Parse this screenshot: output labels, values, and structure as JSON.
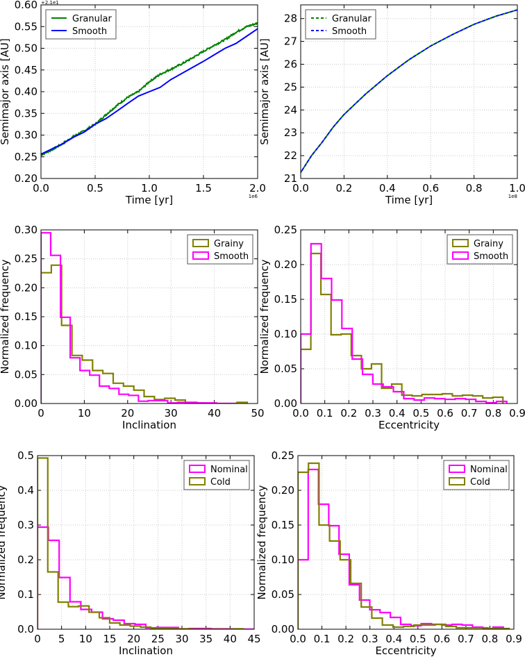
{
  "chart_data": [
    {
      "type": "line",
      "xlabel": "Time [yr]",
      "ylabel": "Semimajor axis [AU]",
      "x_offset_text": "1e6",
      "y_offset_text": "+2.1e1",
      "xlim": [
        0,
        2.0
      ],
      "ylim": [
        0.2,
        0.6
      ],
      "xticks": [
        0,
        0.5,
        1.0,
        1.5,
        2.0
      ],
      "xtick_labels": [
        "0.0",
        "0.5",
        "1.0",
        "1.5",
        "2.0"
      ],
      "yticks": [
        0.2,
        0.25,
        0.3,
        0.35,
        0.4,
        0.45,
        0.5,
        0.55,
        0.6
      ],
      "ytick_labels": [
        "0.20",
        "0.25",
        "0.30",
        "0.35",
        "0.40",
        "0.45",
        "0.50",
        "0.55",
        "0.60"
      ],
      "grid": true,
      "legend": "top-left",
      "x": [
        0,
        0.1,
        0.2,
        0.3,
        0.4,
        0.5,
        0.6,
        0.7,
        0.8,
        0.9,
        1.0,
        1.1,
        1.2,
        1.3,
        1.4,
        1.5,
        1.6,
        1.7,
        1.8,
        1.9,
        2.0
      ],
      "series": [
        {
          "name": "Granular",
          "color": "#008000",
          "style": "solid",
          "noisy": true,
          "values": [
            0.254,
            0.266,
            0.28,
            0.297,
            0.31,
            0.325,
            0.347,
            0.368,
            0.387,
            0.4,
            0.423,
            0.44,
            0.452,
            0.464,
            0.478,
            0.493,
            0.507,
            0.52,
            0.537,
            0.55,
            0.558
          ]
        },
        {
          "name": "Smooth",
          "color": "#0000ff",
          "style": "solid",
          "values": [
            0.256,
            0.268,
            0.28,
            0.295,
            0.307,
            0.325,
            0.338,
            0.355,
            0.373,
            0.39,
            0.4,
            0.41,
            0.428,
            0.442,
            0.456,
            0.47,
            0.485,
            0.5,
            0.511,
            0.528,
            0.545
          ]
        }
      ]
    },
    {
      "type": "line",
      "xlabel": "Time [yr]",
      "ylabel": "Semimajor axis [AU]",
      "x_offset_text": "1e8",
      "xlim": [
        0,
        1.0
      ],
      "ylim": [
        21,
        28.6
      ],
      "xticks": [
        0,
        0.2,
        0.4,
        0.6,
        0.8,
        1.0
      ],
      "xtick_labels": [
        "0.0",
        "0.2",
        "0.4",
        "0.6",
        "0.8",
        "1.0"
      ],
      "yticks": [
        21,
        22,
        23,
        24,
        25,
        26,
        27,
        28
      ],
      "ytick_labels": [
        "21",
        "22",
        "23",
        "24",
        "25",
        "26",
        "27",
        "28"
      ],
      "grid": true,
      "legend": "top-left",
      "x": [
        0,
        0.05,
        0.1,
        0.15,
        0.2,
        0.3,
        0.4,
        0.5,
        0.6,
        0.7,
        0.8,
        0.9,
        1.0
      ],
      "series": [
        {
          "name": "Granular",
          "color": "#008000",
          "style": "dashed",
          "values": [
            21.26,
            22.0,
            22.6,
            23.25,
            23.8,
            24.7,
            25.5,
            26.2,
            26.8,
            27.3,
            27.75,
            28.1,
            28.38
          ]
        },
        {
          "name": "Smooth",
          "color": "#0000ff",
          "style": "dashed",
          "values": [
            21.26,
            22.0,
            22.6,
            23.25,
            23.8,
            24.7,
            25.5,
            26.2,
            26.8,
            27.3,
            27.75,
            28.1,
            28.38
          ]
        }
      ]
    },
    {
      "type": "histogram",
      "xlabel": "Inclination",
      "ylabel": "Normalized frequency",
      "xlim": [
        0,
        50
      ],
      "ylim": [
        0,
        0.3
      ],
      "xticks": [
        0,
        10,
        20,
        30,
        40,
        50
      ],
      "xtick_labels": [
        "0",
        "10",
        "20",
        "30",
        "40",
        "50"
      ],
      "yticks": [
        0,
        0.05,
        0.1,
        0.15,
        0.2,
        0.25,
        0.3
      ],
      "ytick_labels": [
        "0.00",
        "0.05",
        "0.10",
        "0.15",
        "0.20",
        "0.25",
        "0.30"
      ],
      "grid": true,
      "legend": "top-right",
      "series": [
        {
          "name": "Grainy",
          "color": "#808000",
          "bin_start": 0,
          "bin_width": 2.38,
          "values": [
            0.226,
            0.239,
            0.135,
            0.083,
            0.075,
            0.057,
            0.052,
            0.035,
            0.03,
            0.023,
            0.012,
            0.007,
            0.009,
            0.006,
            0.001,
            0.001,
            0.0,
            0.0,
            0.0,
            0.002
          ]
        },
        {
          "name": "Smooth",
          "color": "#ff00ff",
          "bin_start": 0,
          "bin_width": 2.25,
          "values": [
            0.295,
            0.256,
            0.149,
            0.079,
            0.057,
            0.049,
            0.03,
            0.026,
            0.016,
            0.014,
            0.004,
            0.005,
            0.005,
            0.001,
            0.002,
            0.002,
            0.001,
            0.001,
            0.0,
            0.0
          ]
        }
      ]
    },
    {
      "type": "histogram",
      "xlabel": "Eccentricity",
      "ylabel": "Normalized frequency",
      "xlim": [
        0,
        0.9
      ],
      "ylim": [
        0,
        0.25
      ],
      "xticks": [
        0,
        0.1,
        0.2,
        0.3,
        0.4,
        0.5,
        0.6,
        0.7,
        0.8,
        0.9
      ],
      "xtick_labels": [
        "0.0",
        "0.1",
        "0.2",
        "0.3",
        "0.4",
        "0.5",
        "0.6",
        "0.7",
        "0.8",
        "0.9"
      ],
      "yticks": [
        0,
        0.05,
        0.1,
        0.15,
        0.2,
        0.25
      ],
      "ytick_labels": [
        "0.00",
        "0.05",
        "0.10",
        "0.15",
        "0.20",
        "0.25"
      ],
      "grid": true,
      "legend": "top-right",
      "series": [
        {
          "name": "Grainy",
          "color": "#808000",
          "bin_start": 0,
          "bin_width": 0.042,
          "values": [
            0.078,
            0.216,
            0.157,
            0.099,
            0.1,
            0.069,
            0.05,
            0.057,
            0.022,
            0.028,
            0.012,
            0.011,
            0.013,
            0.013,
            0.014,
            0.011,
            0.012,
            0.011,
            0.008,
            0.009
          ]
        },
        {
          "name": "Smooth",
          "color": "#ff00ff",
          "bin_start": 0,
          "bin_width": 0.0428,
          "values": [
            0.1,
            0.23,
            0.18,
            0.149,
            0.108,
            0.064,
            0.042,
            0.028,
            0.024,
            0.017,
            0.007,
            0.005,
            0.008,
            0.007,
            0.006,
            0.007,
            0.006,
            0.003,
            0.001,
            0.003
          ]
        }
      ]
    },
    {
      "type": "histogram",
      "xlabel": "Inclination",
      "ylabel": "Normalized frequency",
      "xlim": [
        0,
        45
      ],
      "ylim": [
        0,
        0.5
      ],
      "xticks": [
        0,
        5,
        10,
        15,
        20,
        25,
        30,
        35,
        40,
        45
      ],
      "xtick_labels": [
        "0",
        "5",
        "10",
        "15",
        "20",
        "25",
        "30",
        "35",
        "40",
        "45"
      ],
      "yticks": [
        0,
        0.1,
        0.2,
        0.3,
        0.4,
        0.5
      ],
      "ytick_labels": [
        "0.0",
        "0.1",
        "0.2",
        "0.3",
        "0.4",
        "0.5"
      ],
      "grid": true,
      "legend": "top-right",
      "series": [
        {
          "name": "Nominal",
          "color": "#ff00ff",
          "bin_start": 0,
          "bin_width": 2.25,
          "values": [
            0.294,
            0.256,
            0.149,
            0.079,
            0.057,
            0.049,
            0.03,
            0.026,
            0.016,
            0.014,
            0.004,
            0.005,
            0.005,
            0.001,
            0.002,
            0.002,
            0.001,
            0.001,
            0.0,
            0.0
          ]
        },
        {
          "name": "Cold",
          "color": "#808000",
          "bin_start": 0,
          "bin_width": 2.14,
          "values": [
            0.493,
            0.165,
            0.078,
            0.065,
            0.067,
            0.049,
            0.033,
            0.018,
            0.012,
            0.009,
            0.006,
            0.002,
            0.002,
            0.001,
            0.001,
            0.0,
            0.0,
            0.0,
            0.0,
            0.001
          ]
        }
      ]
    },
    {
      "type": "histogram",
      "xlabel": "Eccentricity",
      "ylabel": "Normalized frequency",
      "xlim": [
        0,
        0.9
      ],
      "ylim": [
        0,
        0.25
      ],
      "xticks": [
        0,
        0.1,
        0.2,
        0.3,
        0.4,
        0.5,
        0.6,
        0.7,
        0.8,
        0.9
      ],
      "xtick_labels": [
        "0.0",
        "0.1",
        "0.2",
        "0.3",
        "0.4",
        "0.5",
        "0.6",
        "0.7",
        "0.8",
        "0.9"
      ],
      "yticks": [
        0,
        0.05,
        0.1,
        0.15,
        0.2,
        0.25
      ],
      "ytick_labels": [
        "0.00",
        "0.05",
        "0.10",
        "0.15",
        "0.20",
        "0.25"
      ],
      "grid": true,
      "legend": "top-right",
      "series": [
        {
          "name": "Nominal",
          "color": "#ff00ff",
          "bin_start": 0,
          "bin_width": 0.0428,
          "values": [
            0.1,
            0.23,
            0.18,
            0.149,
            0.108,
            0.064,
            0.042,
            0.028,
            0.024,
            0.017,
            0.007,
            0.005,
            0.008,
            0.007,
            0.006,
            0.007,
            0.006,
            0.003,
            0.001,
            0.003
          ]
        },
        {
          "name": "Cold",
          "color": "#808000",
          "bin_start": 0,
          "bin_width": 0.044,
          "values": [
            0.226,
            0.239,
            0.15,
            0.127,
            0.1,
            0.066,
            0.032,
            0.016,
            0.006,
            0.003,
            0.004,
            0.006,
            0.006,
            0.007,
            0.004,
            0.002,
            0.002,
            0.002,
            0.001,
            0.001
          ]
        }
      ]
    }
  ]
}
